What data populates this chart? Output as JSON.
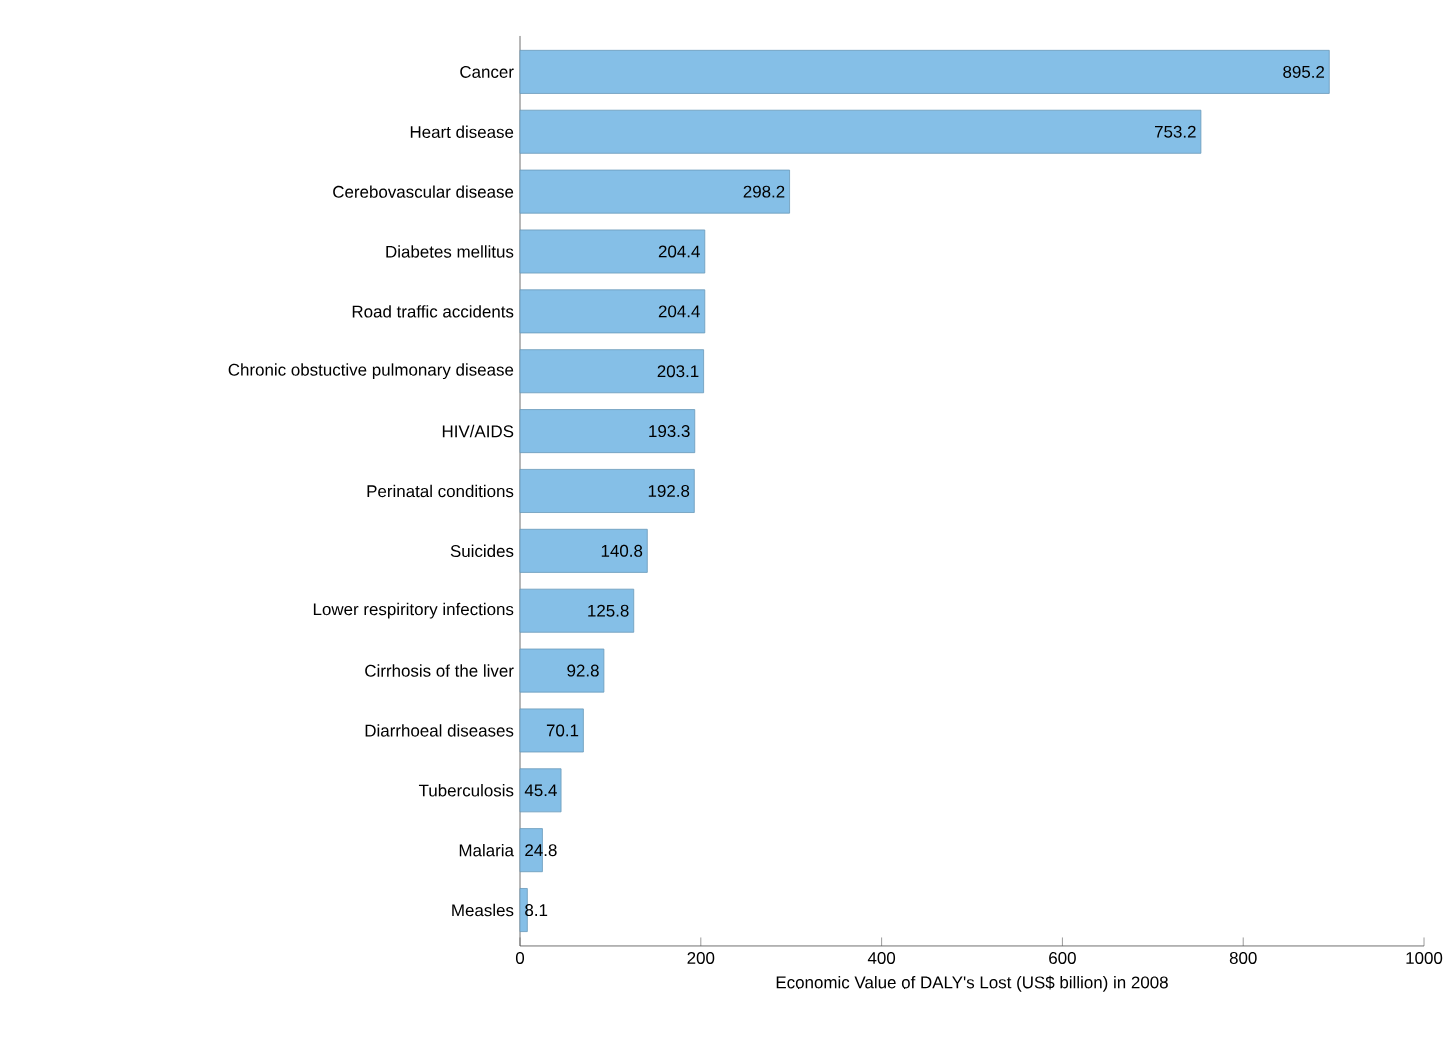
{
  "chart_data": {
    "type": "bar",
    "orientation": "horizontal",
    "xlabel": "Economic Value of DALY's Lost (US$ billion) in 2008",
    "categories": [
      "Cancer",
      "Heart disease",
      "Cerebovascular disease",
      "Diabetes mellitus",
      "Road traffic accidents",
      "Chronic obstuctive pulmonary disease",
      "HIV/AIDS",
      "Perinatal conditions",
      "Suicides",
      "Lower respiritory infections",
      "Cirrhosis of the liver",
      "Diarrhoeal diseases",
      "Tuberculosis",
      "Malaria",
      "Measles"
    ],
    "values": [
      895.2,
      753.2,
      298.2,
      204.4,
      204.4,
      203.1,
      193.3,
      192.8,
      140.8,
      125.8,
      92.8,
      70.1,
      45.4,
      24.8,
      8.1
    ],
    "color": "#85bfe7",
    "xlim": [
      0,
      1000
    ],
    "xticks": [
      0,
      200,
      400,
      600,
      800,
      1000
    ],
    "data_labels": true
  }
}
